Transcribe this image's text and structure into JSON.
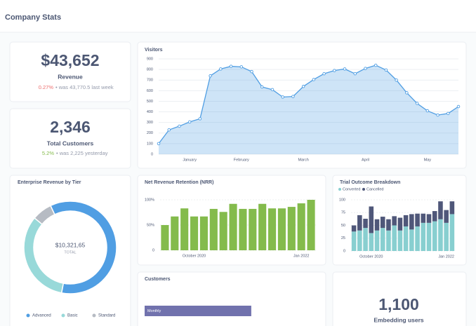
{
  "header": {
    "title": "Company Stats"
  },
  "kpis": [
    {
      "value": "$43,652",
      "label": "Revenue",
      "change": "0.27%",
      "comparison": "• was 43,770.5 last week"
    },
    {
      "value": "2,346",
      "label": "Total Customers",
      "change": "5.2%",
      "comparison": "• was 2,225 yesterday"
    },
    {
      "value": "1,100",
      "label": "Embedding users"
    }
  ],
  "chart_data": [
    {
      "type": "area",
      "title": "Visitors",
      "color": "#509ee3",
      "grid": true,
      "categories": [
        null,
        null,
        null,
        "January",
        null,
        null,
        null,
        null,
        "February",
        null,
        null,
        null,
        null,
        null,
        "March",
        null,
        null,
        null,
        null,
        null,
        "April",
        null,
        null,
        null,
        null,
        null,
        "May",
        null,
        null,
        null
      ],
      "values": [
        100,
        230,
        265,
        305,
        335,
        740,
        805,
        830,
        825,
        780,
        635,
        610,
        540,
        545,
        640,
        705,
        760,
        790,
        805,
        760,
        810,
        840,
        795,
        700,
        580,
        480,
        410,
        370,
        385,
        450
      ],
      "ylim": [
        0,
        900
      ],
      "yticks": [
        0,
        100,
        200,
        300,
        400,
        500,
        600,
        700,
        800,
        900
      ]
    },
    {
      "type": "donut",
      "title": "Enterprise Revenue by Tier",
      "categories": [
        "Advanced",
        "Basic",
        "Standard"
      ],
      "values": [
        60,
        33,
        7
      ],
      "colors": [
        "#509ee3",
        "#98d9d9",
        "#b6bbc3"
      ],
      "center_label": "$10,321,65",
      "center_sublabel": "TOTAL"
    },
    {
      "type": "bar",
      "title": "Net Revenue Retention (NRR)",
      "color": "#84bb4c",
      "grid": true,
      "categories": [
        null,
        null,
        null,
        "October 2020",
        null,
        null,
        null,
        null,
        null,
        null,
        null,
        null,
        null,
        null,
        "Jan 2022",
        null
      ],
      "values": [
        50,
        67,
        83,
        67,
        67,
        82,
        76,
        92,
        82,
        82,
        92,
        83,
        83,
        86,
        93,
        100
      ],
      "ylim": [
        0,
        100
      ],
      "yticks": [
        0,
        {
          "value": 50,
          "label": "50%"
        },
        {
          "value": 100,
          "label": "100%"
        }
      ]
    },
    {
      "type": "bar",
      "title": "Trial Outcome Breakdown",
      "stacked": true,
      "grid": true,
      "categories": [
        null,
        null,
        null,
        "October 2020",
        null,
        null,
        null,
        null,
        null,
        null,
        null,
        null,
        null,
        null,
        null,
        null,
        "Jan 2022",
        null
      ],
      "series": [
        {
          "name": "Converted",
          "color": "#88cfd0",
          "values": [
            38,
            40,
            45,
            35,
            40,
            45,
            40,
            50,
            40,
            48,
            42,
            48,
            55,
            55,
            58,
            62,
            55,
            72
          ]
        },
        {
          "name": "Cancelled",
          "color": "#4f5779",
          "values": [
            12,
            30,
            18,
            52,
            22,
            22,
            22,
            18,
            25,
            22,
            30,
            25,
            18,
            17,
            20,
            35,
            25,
            25
          ]
        }
      ],
      "ylim": [
        0,
        100
      ],
      "yticks": [
        0,
        25,
        50,
        75,
        100
      ]
    },
    {
      "type": "row",
      "title": "Customers",
      "color": "#7172ad",
      "categories": [
        "Monthly"
      ],
      "values": [
        61
      ],
      "xlim": [
        0,
        100
      ]
    }
  ]
}
